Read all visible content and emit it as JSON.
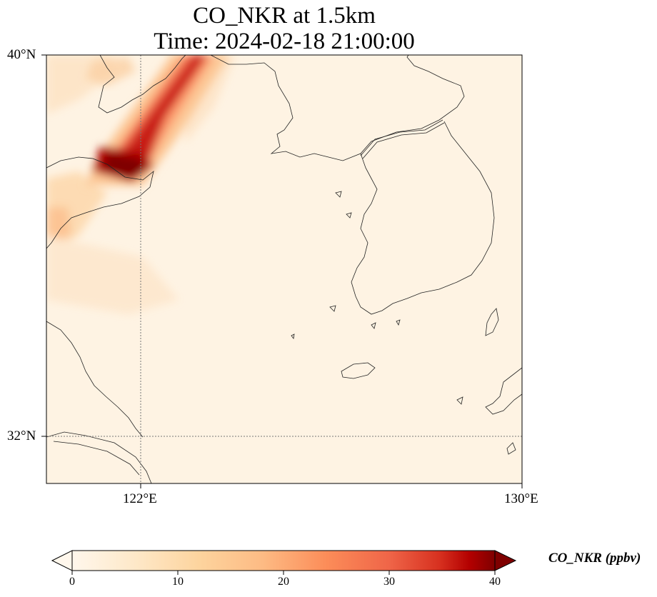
{
  "title": {
    "line1": "CO_NKR at 1.5km",
    "line2": "Time: 2024-02-18 21:00:00"
  },
  "axes": {
    "lat_ticks": [
      "40°N",
      "32°N"
    ],
    "lon_ticks": [
      "122°E",
      "130°E"
    ]
  },
  "colorbar": {
    "label": "CO_NKR (ppbv)",
    "ticks": [
      "0",
      "10",
      "20",
      "30",
      "40"
    ],
    "min": 0,
    "max": 40,
    "colormap": "OrRd",
    "extend": "both"
  },
  "colors": {
    "background": "#fef3e3",
    "coast": "#222222",
    "grid": "#666666"
  }
}
